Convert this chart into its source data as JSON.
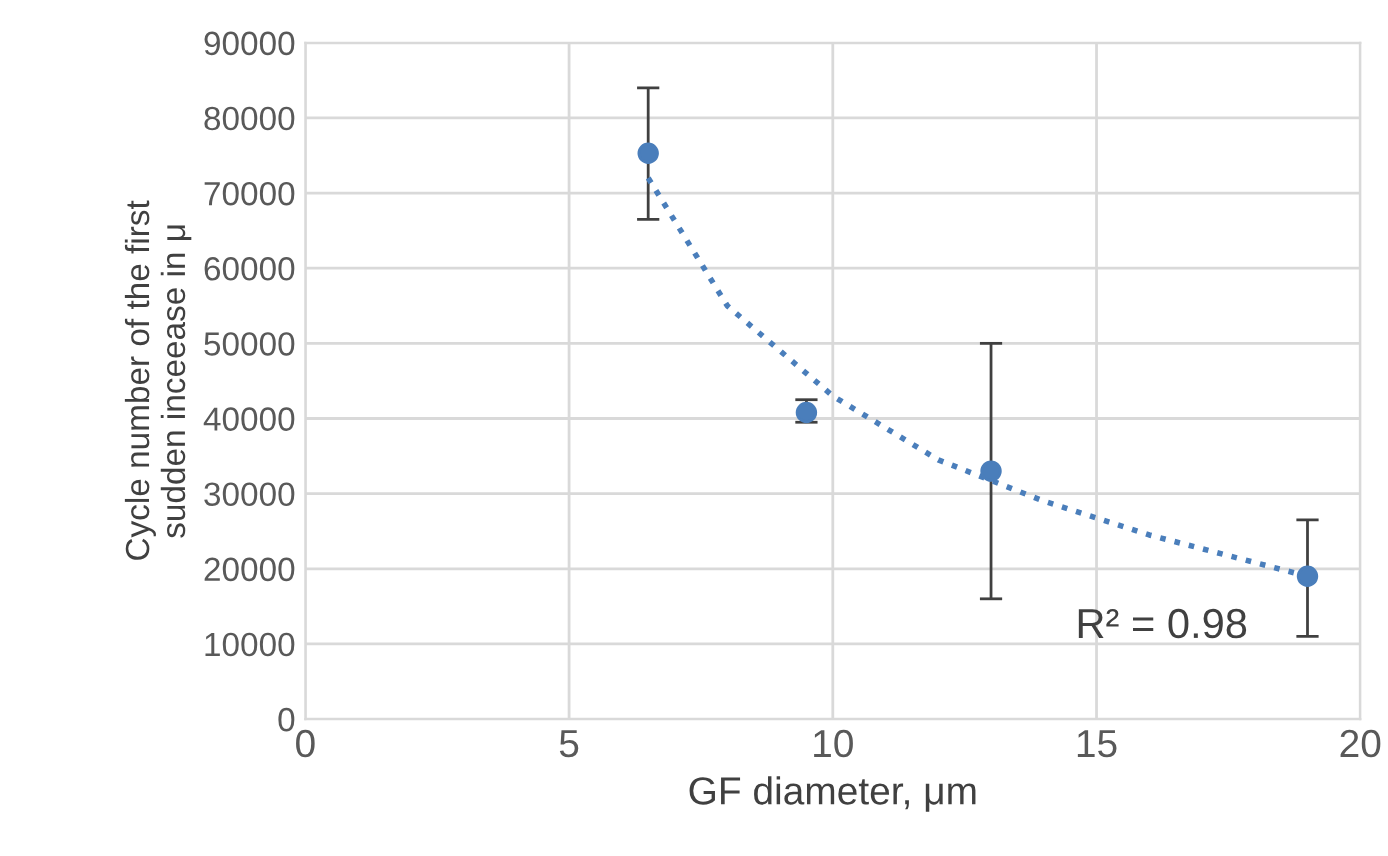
{
  "chart_data": {
    "type": "scatter",
    "xlabel": "GF diameter, μm",
    "ylabel": "Cycle number of the first sudden inceease in μ",
    "xlim": [
      0,
      20
    ],
    "xticks": [
      0,
      5,
      10,
      15,
      20
    ],
    "ylim": [
      0,
      90000
    ],
    "yticks": [
      0,
      10000,
      20000,
      30000,
      40000,
      50000,
      60000,
      70000,
      80000,
      90000
    ],
    "grid": true,
    "annotations": [
      "R² = 0.98"
    ],
    "series": [
      {
        "marker": "circle",
        "color": "#4a7ebb",
        "x": [
          6.5,
          9.5,
          13,
          19
        ],
        "values": [
          75300,
          40800,
          33000,
          19000
        ],
        "errors": [
          [
            66500,
            84000
          ],
          [
            39500,
            42500
          ],
          [
            16000,
            50000
          ],
          [
            11000,
            26500
          ]
        ]
      },
      {
        "type": "line",
        "line_style": "dotted",
        "marker": "none",
        "color": "#4a7ebb",
        "x": [
          6.5,
          8,
          10,
          12,
          14,
          16,
          19
        ],
        "values": [
          72000,
          55000,
          43000,
          34500,
          29000,
          24500,
          19000
        ]
      }
    ]
  }
}
